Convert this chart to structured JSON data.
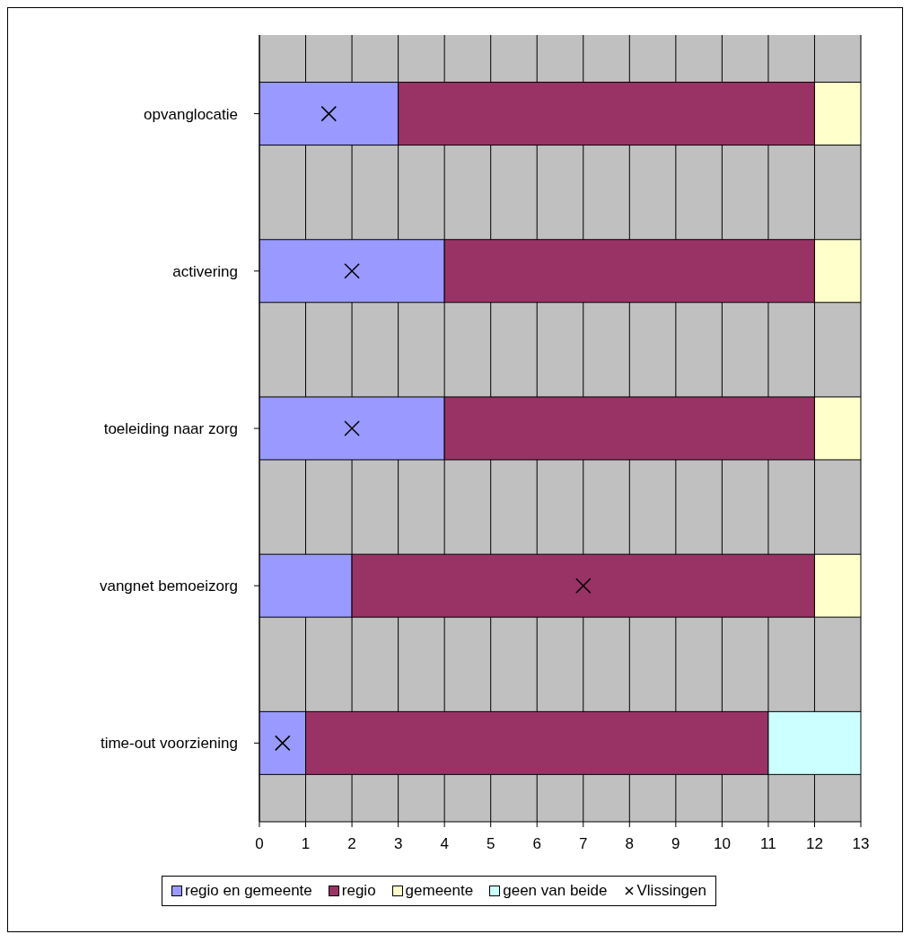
{
  "chart_data": {
    "type": "bar",
    "orientation": "horizontal",
    "stacked": true,
    "categories": [
      "opvanglocatie",
      "activering",
      "toeleiding naar zorg",
      "vangnet bemoeizorg",
      "time-out voorziening"
    ],
    "series": [
      {
        "name": "regio en gemeente",
        "color": "#9999ff",
        "values": [
          3,
          4,
          4,
          2,
          1
        ]
      },
      {
        "name": "regio",
        "color": "#993366",
        "values": [
          9,
          8,
          8,
          10,
          10
        ]
      },
      {
        "name": "gemeente",
        "color": "#ffffcc",
        "values": [
          1,
          1,
          1,
          1,
          null
        ]
      },
      {
        "name": "geen van beide",
        "color": "#ccffff",
        "values": [
          null,
          null,
          null,
          null,
          2
        ]
      },
      {
        "name": "Vlissingen",
        "type": "scatter",
        "color": "#000000",
        "marker": "cross",
        "values": [
          1.5,
          2,
          2,
          7,
          0.5
        ]
      }
    ],
    "xlim": [
      0,
      13
    ],
    "xticks": [
      0,
      1,
      2,
      3,
      4,
      5,
      6,
      7,
      8,
      9,
      10,
      11,
      12,
      13
    ],
    "grid": "x",
    "legend": "bottom"
  }
}
